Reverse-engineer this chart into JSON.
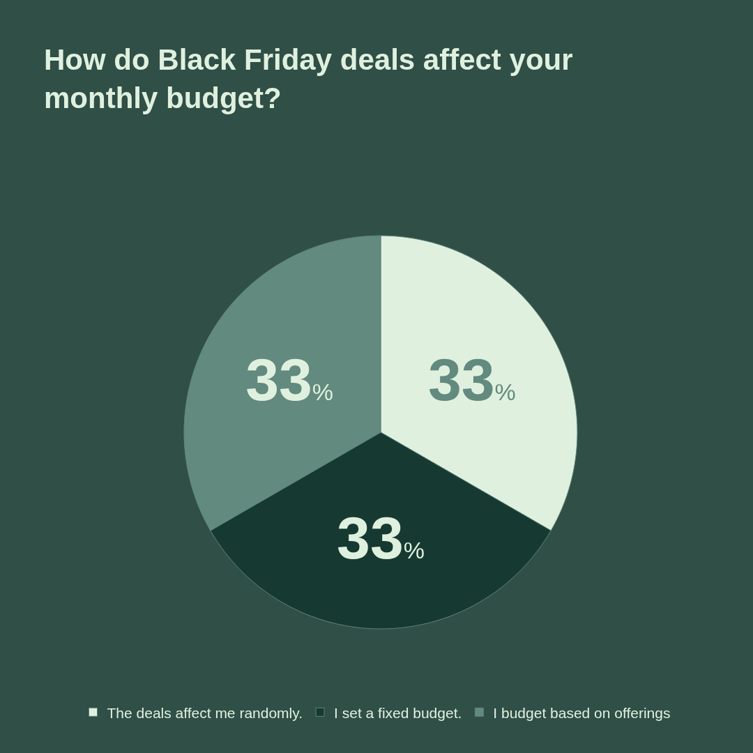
{
  "chart_data": {
    "type": "pie",
    "title": "How do Black Friday deals affect your monthly budget?",
    "categories": [
      "The deals affect me randomly.",
      "I set a fixed budget.",
      "I budget based on offerings"
    ],
    "values": [
      33,
      33,
      33
    ],
    "colors": [
      "#e0f0df",
      "#163a31",
      "#628a7e"
    ],
    "value_labels": [
      "33%",
      "33%",
      "33%"
    ],
    "legend": "bottom"
  }
}
